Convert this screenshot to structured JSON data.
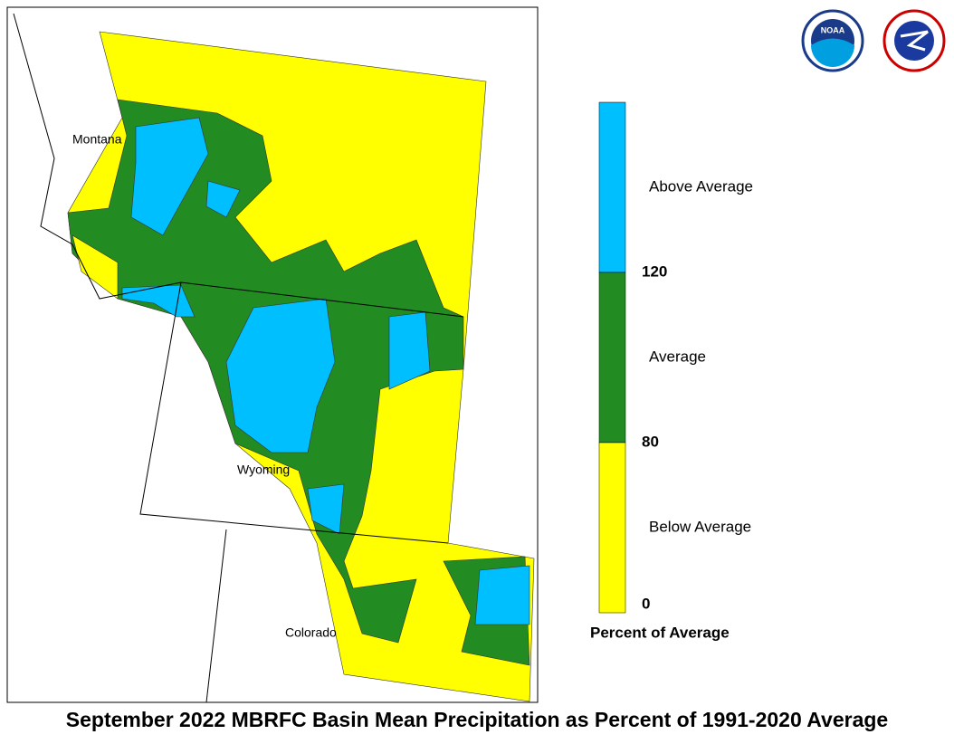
{
  "map": {
    "title": "September 2022 MBRFC Basin Mean Precipitation as Percent of 1991-2020 Average",
    "states": [
      "Montana",
      "Wyoming",
      "Colorado"
    ],
    "logos": [
      "NOAA"
    ],
    "legend": {
      "title": "Percent of Average",
      "classes": [
        {
          "label": "Above Average",
          "color": "#00bfff"
        },
        {
          "label": "Average",
          "color": "#228b22"
        },
        {
          "label": "Below Average",
          "color": "#ffff00"
        }
      ],
      "breaks": [
        120,
        80,
        0
      ]
    }
  }
}
